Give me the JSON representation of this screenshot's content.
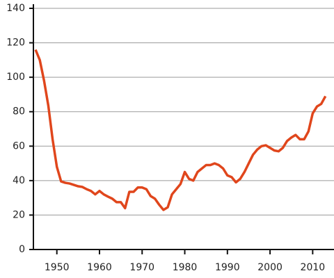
{
  "chart_data": {
    "type": "line",
    "x": [
      1945,
      1946,
      1947,
      1948,
      1949,
      1950,
      1951,
      1952,
      1953,
      1954,
      1955,
      1956,
      1957,
      1958,
      1959,
      1960,
      1961,
      1962,
      1963,
      1964,
      1965,
      1966,
      1967,
      1968,
      1969,
      1970,
      1971,
      1972,
      1973,
      1974,
      1975,
      1976,
      1977,
      1978,
      1979,
      1980,
      1981,
      1982,
      1983,
      1984,
      1985,
      1986,
      1987,
      1988,
      1989,
      1990,
      1991,
      1992,
      1993,
      1994,
      1995,
      1996,
      1997,
      1998,
      1999,
      2000,
      2001,
      2002,
      2003,
      2004,
      2005,
      2006,
      2007,
      2008,
      2009,
      2010,
      2011,
      2012,
      2013
    ],
    "series": [
      {
        "color": "#e0461c",
        "values": [
          116,
          110,
          98,
          83.5,
          64,
          48,
          39.5,
          38.7,
          38.3,
          37.5,
          36.7,
          36.3,
          35,
          34,
          32,
          34,
          32,
          30.7,
          29.5,
          27.5,
          27.5,
          24,
          33.5,
          33.5,
          36,
          36,
          35,
          31,
          29.5,
          26,
          23,
          24.5,
          32,
          35,
          38,
          45,
          41,
          40,
          45,
          47,
          49,
          49,
          50,
          49,
          47,
          43,
          42,
          39,
          41,
          45,
          50,
          55,
          58,
          60,
          60.5,
          59,
          57.5,
          57,
          59,
          63,
          65,
          66.5,
          64,
          64,
          68.5,
          79,
          83,
          84.5,
          89
        ]
      }
    ],
    "xlim": [
      1944.5,
      2015
    ],
    "xticks": [
      1950,
      1960,
      1970,
      1980,
      1990,
      2000,
      2010
    ],
    "ylim": [
      0,
      140
    ],
    "yticks": [
      0,
      20,
      40,
      60,
      80,
      100,
      120,
      140
    ],
    "grid": true
  }
}
